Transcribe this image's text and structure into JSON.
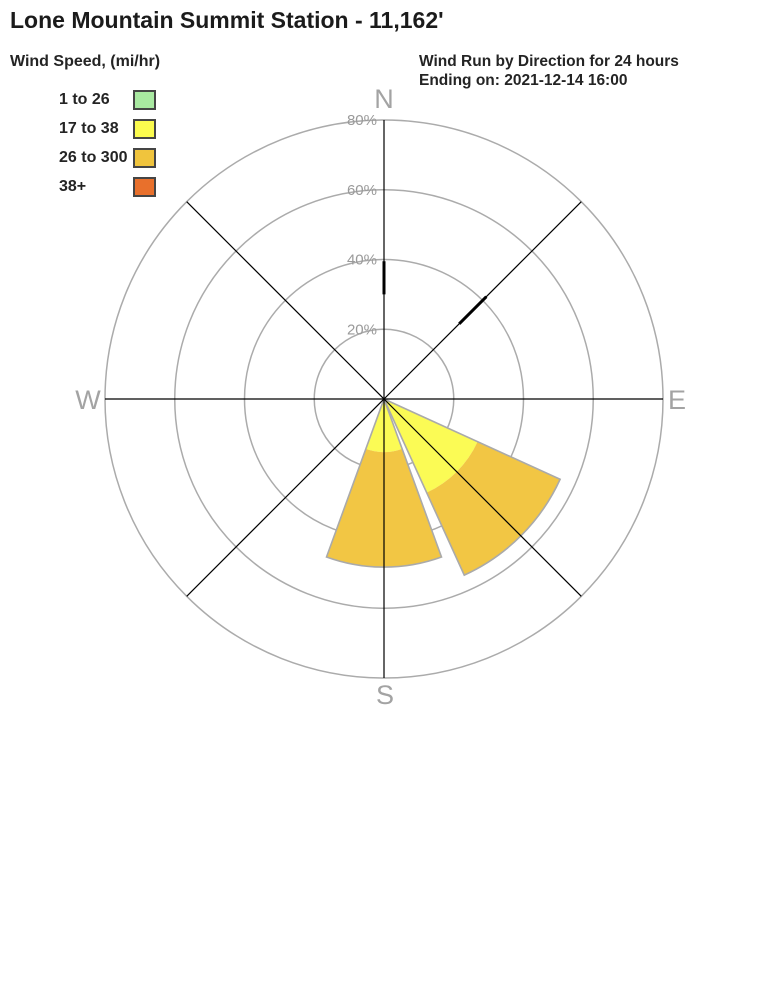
{
  "page": {
    "title": "Lone Mountain Summit Station - 11,162'"
  },
  "legend": {
    "title": "Wind Speed, (mi/hr)",
    "items": [
      {
        "label": "1 to 26",
        "color": "#a9e9a1"
      },
      {
        "label": "17 to 38",
        "color": "#fbfb4e"
      },
      {
        "label": "26 to 300",
        "color": "#f0c43d"
      },
      {
        "label": "38+",
        "color": "#e8702c"
      }
    ]
  },
  "header": {
    "line1": "Wind Run by Direction for 24 hours",
    "line2": "Ending on: 2021-12-14 16:00"
  },
  "chart_data": {
    "type": "wind_rose_polar_bar",
    "title": "Wind Run by Direction for 24 hours",
    "subtitle": "Ending on: 2021-12-14 16:00",
    "units": "% of wind run",
    "radial_axis": {
      "unit": "%",
      "rings": [
        20,
        40,
        60,
        80
      ],
      "labels": [
        "20%",
        "40%",
        "60%",
        "80%"
      ],
      "max": 80
    },
    "compass_labels": [
      {
        "text": "N",
        "azimuth": 0
      },
      {
        "text": "E",
        "azimuth": 90
      },
      {
        "text": "S",
        "azimuth": 180
      },
      {
        "text": "W",
        "azimuth": 270
      }
    ],
    "spoke_azimuths": [
      0,
      45,
      90,
      135,
      180,
      225,
      270,
      315
    ],
    "petals": [
      {
        "direction": "SE",
        "azimuth": 135,
        "width_deg": 41,
        "segments": [
          {
            "bin": "17 to 38",
            "from_pct": 0,
            "to_pct": 29.5,
            "color": "#fbfb55"
          },
          {
            "bin": "26 to 300",
            "from_pct": 29.5,
            "to_pct": 55.5,
            "color": "#f2c644"
          }
        ]
      },
      {
        "direction": "S",
        "azimuth": 180,
        "width_deg": 40,
        "segments": [
          {
            "bin": "17 to 38",
            "from_pct": 0,
            "to_pct": 15.2,
            "color": "#fbfb55"
          },
          {
            "bin": "26 to 300",
            "from_pct": 15.2,
            "to_pct": 48.2,
            "color": "#f2c644"
          }
        ]
      }
    ],
    "thin_markers": [
      {
        "direction": "N",
        "azimuth": 0,
        "from_pct": 30,
        "to_pct": 39.5
      },
      {
        "direction": "NE",
        "azimuth": 45,
        "from_pct": 30.5,
        "to_pct": 41.5
      }
    ],
    "colors": {
      "ring": "#ababab",
      "axis": "#000000",
      "ring_label": "#9a9a9a",
      "compass_label": "#a3a3a3",
      "petal_outline": "#aaaaaa",
      "marker": "#000000"
    }
  }
}
